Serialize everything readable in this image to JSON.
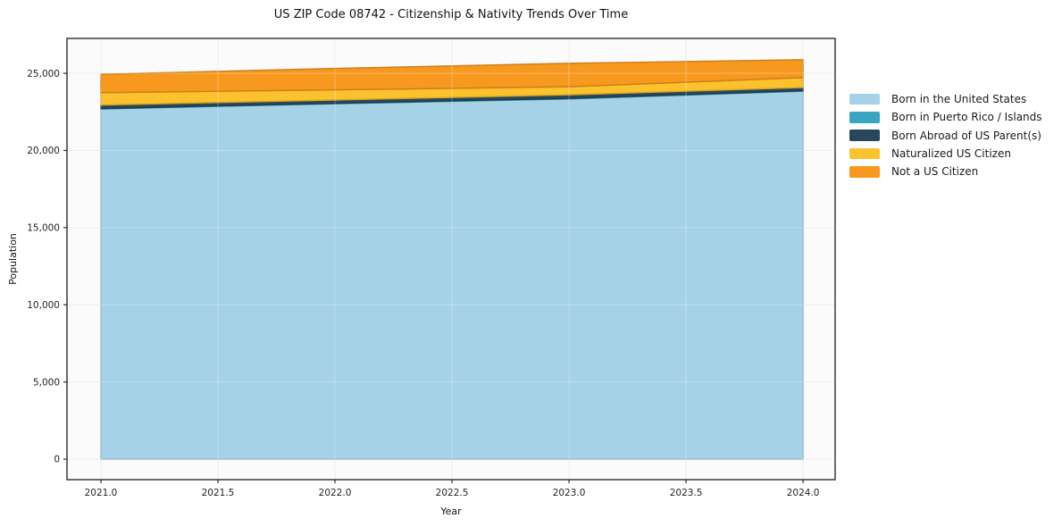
{
  "page": {
    "background_color": "#ffffff"
  },
  "chart_data": {
    "type": "area",
    "stacked": true,
    "title": "US ZIP Code 08742 - Citizenship & Nativity Trends Over Time",
    "xlabel": "Year",
    "ylabel": "Population",
    "x": [
      2021,
      2022,
      2023,
      2024
    ],
    "series": [
      {
        "name": "Born in the United States",
        "color": "#a5d2e6",
        "values": [
          22690,
          23030,
          23340,
          23840
        ]
      },
      {
        "name": "Born in Puerto Rico / Islands",
        "color": "#3aa5c1",
        "values": [
          25,
          30,
          35,
          40
        ]
      },
      {
        "name": "Born Abroad of US Parent(s)",
        "color": "#27485c",
        "values": [
          230,
          210,
          230,
          200
        ]
      },
      {
        "name": "Naturalized US Citizen",
        "color": "#fcc22e",
        "values": [
          800,
          655,
          520,
          640
        ]
      },
      {
        "name": "Not a US Citizen",
        "color": "#f7981f",
        "values": [
          1185,
          1390,
          1520,
          1160
        ]
      }
    ],
    "totals": [
      24930,
      25315,
      25645,
      25880
    ],
    "xticks": {
      "values": [
        2021.0,
        2021.5,
        2022.0,
        2022.5,
        2023.0,
        2023.5,
        2024.0
      ],
      "labels": [
        "2021.0",
        "2021.5",
        "2022.0",
        "2022.5",
        "2023.0",
        "2023.5",
        "2024.0"
      ]
    },
    "yticks": {
      "values": [
        0,
        5000,
        10000,
        15000,
        20000,
        25000
      ],
      "labels": [
        "0",
        "5,000",
        "10,000",
        "15,000",
        "20,000",
        "25,000"
      ]
    },
    "xlim": [
      2020.855,
      2024.137
    ],
    "ylim": [
      -1330,
      27260
    ],
    "grid": true,
    "grid_color": "#e8e8e8",
    "plot_background": "#fbfbfb",
    "spine_color": "#2e2e2e",
    "tick_label_color": "#242424",
    "legend_position": "right"
  }
}
